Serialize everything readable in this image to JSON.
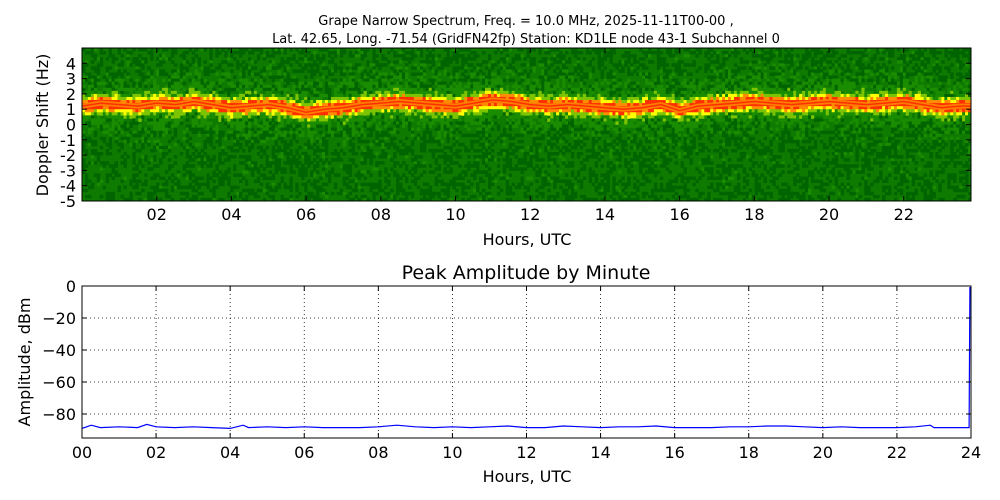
{
  "header": {
    "title_line1": "Grape Narrow Spectrum, Freq. = 10.0 MHz, 2025-11-11T00-00 ,",
    "title_line2": "Lat.  42.65, Long. -71.54 (GridFN42fp) Station: KD1LE node 43-1 Subchannel 0"
  },
  "chart_data": [
    {
      "type": "heatmap",
      "title": "",
      "xlabel": "Hours, UTC",
      "ylabel": "Doppler Shift (Hz)",
      "xlim": [
        0,
        23.8
      ],
      "ylim": [
        -5,
        5
      ],
      "x_tick_values": [
        2,
        4,
        6,
        8,
        10,
        12,
        14,
        16,
        18,
        20,
        22
      ],
      "x_tick_labels": [
        "02",
        "04",
        "06",
        "08",
        "10",
        "12",
        "14",
        "16",
        "18",
        "20",
        "22"
      ],
      "y_tick_values": [
        4,
        3,
        2,
        1,
        0,
        -1,
        -2,
        -3,
        -4,
        -5
      ],
      "y_tick_labels": [
        "4",
        "3",
        "2",
        "1",
        "0",
        "-1",
        "-2",
        "-3",
        "-4",
        "-5"
      ],
      "colormap": [
        "#006400",
        "#1a8c00",
        "#7cc400",
        "#ffff00",
        "#ff8c00",
        "#ff3000"
      ],
      "signal_trace_hz": {
        "hours": [
          0,
          0.5,
          1,
          1.5,
          2,
          2.5,
          3,
          3.5,
          4,
          4.5,
          5,
          5.5,
          6,
          6.5,
          7,
          7.5,
          8,
          8.5,
          9,
          9.5,
          10,
          10.5,
          11,
          11.5,
          12,
          12.5,
          13,
          13.5,
          14,
          14.5,
          15,
          15.5,
          16,
          16.5,
          17,
          17.5,
          18,
          18.5,
          19,
          19.5,
          20,
          20.5,
          21,
          21.5,
          22,
          22.5,
          23,
          23.5,
          23.8
        ],
        "values": [
          1.2,
          1.4,
          1.3,
          1.2,
          1.4,
          1.3,
          1.5,
          1.3,
          1.1,
          1.2,
          1.3,
          1.1,
          0.8,
          1.0,
          1.1,
          1.3,
          1.4,
          1.5,
          1.4,
          1.3,
          1.2,
          1.4,
          1.6,
          1.5,
          1.3,
          1.2,
          1.3,
          1.2,
          1.1,
          1.0,
          1.1,
          1.3,
          0.9,
          1.2,
          1.3,
          1.4,
          1.5,
          1.4,
          1.3,
          1.4,
          1.5,
          1.4,
          1.3,
          1.4,
          1.5,
          1.3,
          1.1,
          1.2,
          1.2
        ]
      }
    },
    {
      "type": "line",
      "title": "Peak Amplitude by Minute",
      "xlabel": "Hours, UTC",
      "ylabel": "Amplitude, dBm",
      "xlim": [
        0,
        24
      ],
      "ylim": [
        -95,
        0
      ],
      "grid": true,
      "x_tick_values": [
        0,
        2,
        4,
        6,
        8,
        10,
        12,
        14,
        16,
        18,
        20,
        22,
        24
      ],
      "x_tick_labels": [
        "00",
        "02",
        "04",
        "06",
        "08",
        "10",
        "12",
        "14",
        "16",
        "18",
        "20",
        "22",
        "24"
      ],
      "y_tick_values": [
        0,
        -20,
        -40,
        -60,
        -80
      ],
      "y_tick_labels": [
        "0",
        "−20",
        "−40",
        "−60",
        "−80"
      ],
      "series": [
        {
          "color": "#0000ff",
          "x": [
            0,
            0.25,
            0.5,
            1,
            1.5,
            1.75,
            2,
            2.5,
            3,
            3.5,
            4,
            4.35,
            4.5,
            5,
            5.5,
            6,
            6.5,
            7,
            7.5,
            8,
            8.5,
            9,
            9.5,
            10,
            10.5,
            11,
            11.5,
            12,
            12.5,
            13,
            13.5,
            14,
            14.5,
            15,
            15.5,
            16,
            16.5,
            17,
            17.5,
            18,
            18.5,
            19,
            19.5,
            20,
            20.5,
            21,
            21.5,
            22,
            22.5,
            22.9,
            23,
            23.5,
            23.95,
            23.97,
            24
          ],
          "y": [
            -89,
            -87,
            -88.5,
            -88,
            -88.5,
            -86.5,
            -88,
            -88.5,
            -88,
            -88.5,
            -89,
            -87,
            -88.5,
            -88,
            -88.5,
            -88,
            -88.5,
            -88.5,
            -88.5,
            -88,
            -87,
            -88,
            -88.5,
            -88,
            -88.5,
            -88,
            -87.5,
            -88.5,
            -88.5,
            -87.5,
            -88,
            -88.5,
            -88,
            -88,
            -87.5,
            -88.5,
            -88.5,
            -88.5,
            -88,
            -88,
            -87.5,
            -87.5,
            -88,
            -88.5,
            -88,
            -88.5,
            -88.5,
            -88.5,
            -88,
            -87,
            -88.5,
            -88.5,
            -88.5,
            -1,
            -1
          ]
        }
      ]
    }
  ]
}
